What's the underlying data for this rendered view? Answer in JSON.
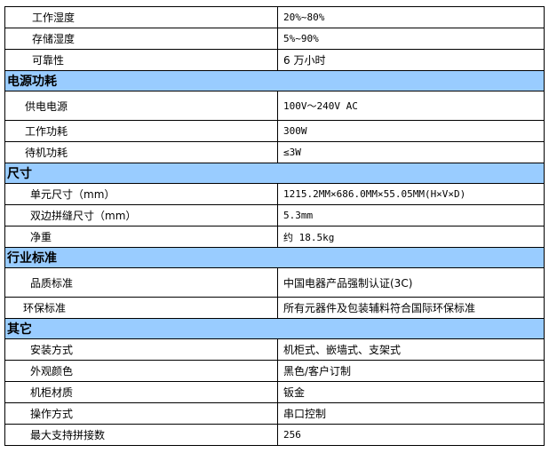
{
  "rows": [
    {
      "type": "row",
      "label": "工作湿度",
      "value": "20%~80%",
      "indent": 30,
      "mono": true
    },
    {
      "type": "row",
      "label": "存储湿度",
      "value": "5%~90%",
      "indent": 30,
      "mono": true
    },
    {
      "type": "row",
      "label": "可靠性",
      "value": "6 万小时",
      "indent": 30,
      "mono": false
    },
    {
      "type": "section",
      "label": "电源功耗"
    },
    {
      "type": "row",
      "label": "供电电源",
      "value": "100V～240V AC",
      "indent": 22,
      "mono": true,
      "tall": true
    },
    {
      "type": "row",
      "label": "工作功耗",
      "value": "300W",
      "indent": 22,
      "mono": true
    },
    {
      "type": "row",
      "label": "待机功耗",
      "value": "≤3W",
      "indent": 22,
      "mono": true
    },
    {
      "type": "section",
      "label": "尺寸"
    },
    {
      "type": "row",
      "label": "单元尺寸（mm）",
      "value": "1215.2MM×686.0MM×55.05MM(H×V×D)",
      "indent": 28,
      "mono": true
    },
    {
      "type": "row",
      "label": "双边拼缝尺寸（mm）",
      "value": "5.3mm",
      "indent": 28,
      "mono": true
    },
    {
      "type": "row",
      "label": "净重",
      "value": "约 18.5kg",
      "indent": 28,
      "mono": true
    },
    {
      "type": "section",
      "label": "行业标准"
    },
    {
      "type": "row",
      "label": "品质标准",
      "value": "中国电器产品强制认证(3C)",
      "indent": 28,
      "mono": false,
      "tall": true
    },
    {
      "type": "row",
      "label": "环保标准",
      "value": "所有元器件及包装辅料符合国际环保标准",
      "indent": 20,
      "mono": false
    },
    {
      "type": "section",
      "label": "其它"
    },
    {
      "type": "row",
      "label": "安装方式",
      "value": "机柜式、嵌墙式、支架式",
      "indent": 28,
      "mono": false
    },
    {
      "type": "row",
      "label": "外观颜色",
      "value": "黑色/客户订制",
      "indent": 28,
      "mono": false
    },
    {
      "type": "row",
      "label": "机柜材质",
      "value": "钣金",
      "indent": 28,
      "mono": false
    },
    {
      "type": "row",
      "label": "操作方式",
      "value": "串口控制",
      "indent": 28,
      "mono": false
    },
    {
      "type": "row",
      "label": "最大支持拼接数",
      "value": "256",
      "indent": 28,
      "mono": true
    }
  ],
  "colors": {
    "section_bg": "#99ccff",
    "border": "#000000"
  }
}
